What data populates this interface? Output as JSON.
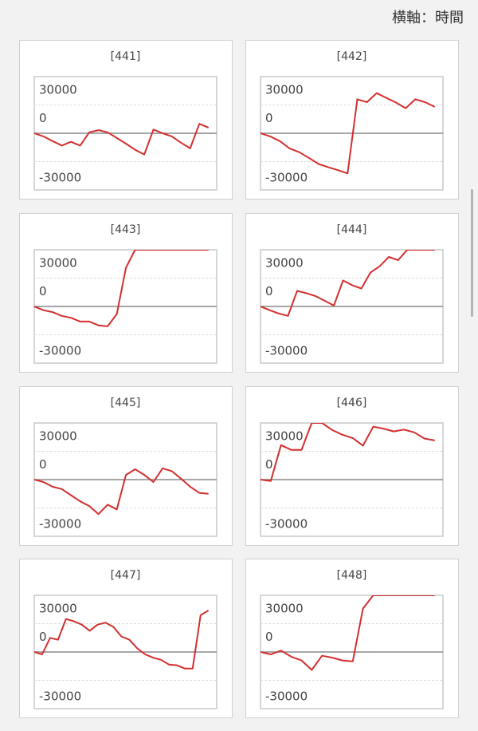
{
  "header": "横軸：時間",
  "chart_data": [
    {
      "type": "line",
      "title": "[441]",
      "color": "#d32f2f",
      "ylim": [
        -60000,
        60000
      ],
      "yticks": [
        -30000,
        0,
        30000
      ],
      "values": [
        0,
        -3300,
        -8300,
        -13000,
        -9000,
        -13000,
        1000,
        3300,
        1000,
        -5000,
        -11000,
        -17500,
        -22500,
        4000,
        0,
        -3300,
        -10000,
        -16000,
        10000,
        6000
      ]
    },
    {
      "type": "line",
      "title": "[442]",
      "color": "#d32f2f",
      "ylim": [
        -60000,
        60000
      ],
      "yticks": [
        -30000,
        0,
        30000
      ],
      "values": [
        0,
        -3300,
        -8300,
        -16000,
        -20000,
        -26000,
        -32500,
        -36000,
        -39000,
        -42500,
        36000,
        33000,
        42500,
        37500,
        32500,
        26500,
        36000,
        33000,
        28000
      ]
    },
    {
      "type": "line",
      "title": "[443]",
      "color": "#d32f2f",
      "ylim": [
        -60000,
        60000
      ],
      "yticks": [
        -30000,
        0,
        30000
      ],
      "values": [
        0,
        -4000,
        -6000,
        -10000,
        -12000,
        -16000,
        -16000,
        -20000,
        -21000,
        -8000,
        41000,
        60000,
        60000,
        60000,
        60000,
        60000,
        60000,
        60000,
        60000,
        60000
      ]
    },
    {
      "type": "line",
      "title": "[444]",
      "color": "#d32f2f",
      "ylim": [
        -60000,
        60000
      ],
      "yticks": [
        -30000,
        0,
        30000
      ],
      "values": [
        0,
        -4000,
        -7500,
        -10000,
        16500,
        14000,
        11000,
        6000,
        1000,
        27500,
        22500,
        19000,
        36000,
        42500,
        52500,
        49000,
        60000,
        60000,
        60000,
        60000
      ]
    },
    {
      "type": "line",
      "title": "[445]",
      "color": "#d32f2f",
      "ylim": [
        -60000,
        60000
      ],
      "yticks": [
        -30000,
        0,
        30000
      ],
      "values": [
        0,
        -2500,
        -7500,
        -10000,
        -16500,
        -23000,
        -28000,
        -36500,
        -26500,
        -31500,
        5000,
        11000,
        5000,
        -2500,
        12000,
        9000,
        1000,
        -7500,
        -14000,
        -15000
      ]
    },
    {
      "type": "line",
      "title": "[446]",
      "color": "#d32f2f",
      "ylim": [
        -60000,
        60000
      ],
      "yticks": [
        -30000,
        0,
        30000
      ],
      "values": [
        0,
        -1500,
        36500,
        31500,
        31500,
        60000,
        60000,
        52500,
        47500,
        44000,
        36000,
        56000,
        54000,
        51000,
        53000,
        50000,
        43500,
        41500
      ]
    },
    {
      "type": "line",
      "title": "[447]",
      "color": "#d32f2f",
      "ylim": [
        -60000,
        60000
      ],
      "yticks": [
        -30000,
        0,
        30000
      ],
      "values": [
        0,
        -2500,
        15000,
        13000,
        35000,
        32500,
        29000,
        22500,
        29000,
        31000,
        26500,
        16500,
        13000,
        4000,
        -2500,
        -6000,
        -8300,
        -13300,
        -14000,
        -17500,
        -17500,
        39000,
        44000
      ]
    },
    {
      "type": "line",
      "title": "[448]",
      "color": "#d32f2f",
      "ylim": [
        -60000,
        60000
      ],
      "yticks": [
        -30000,
        0,
        30000
      ],
      "values": [
        0,
        -2500,
        1500,
        -5000,
        -9000,
        -19000,
        -4000,
        -6000,
        -9000,
        -10000,
        46000,
        60000,
        60000,
        60000,
        60000,
        60000,
        60000,
        60000
      ]
    }
  ]
}
